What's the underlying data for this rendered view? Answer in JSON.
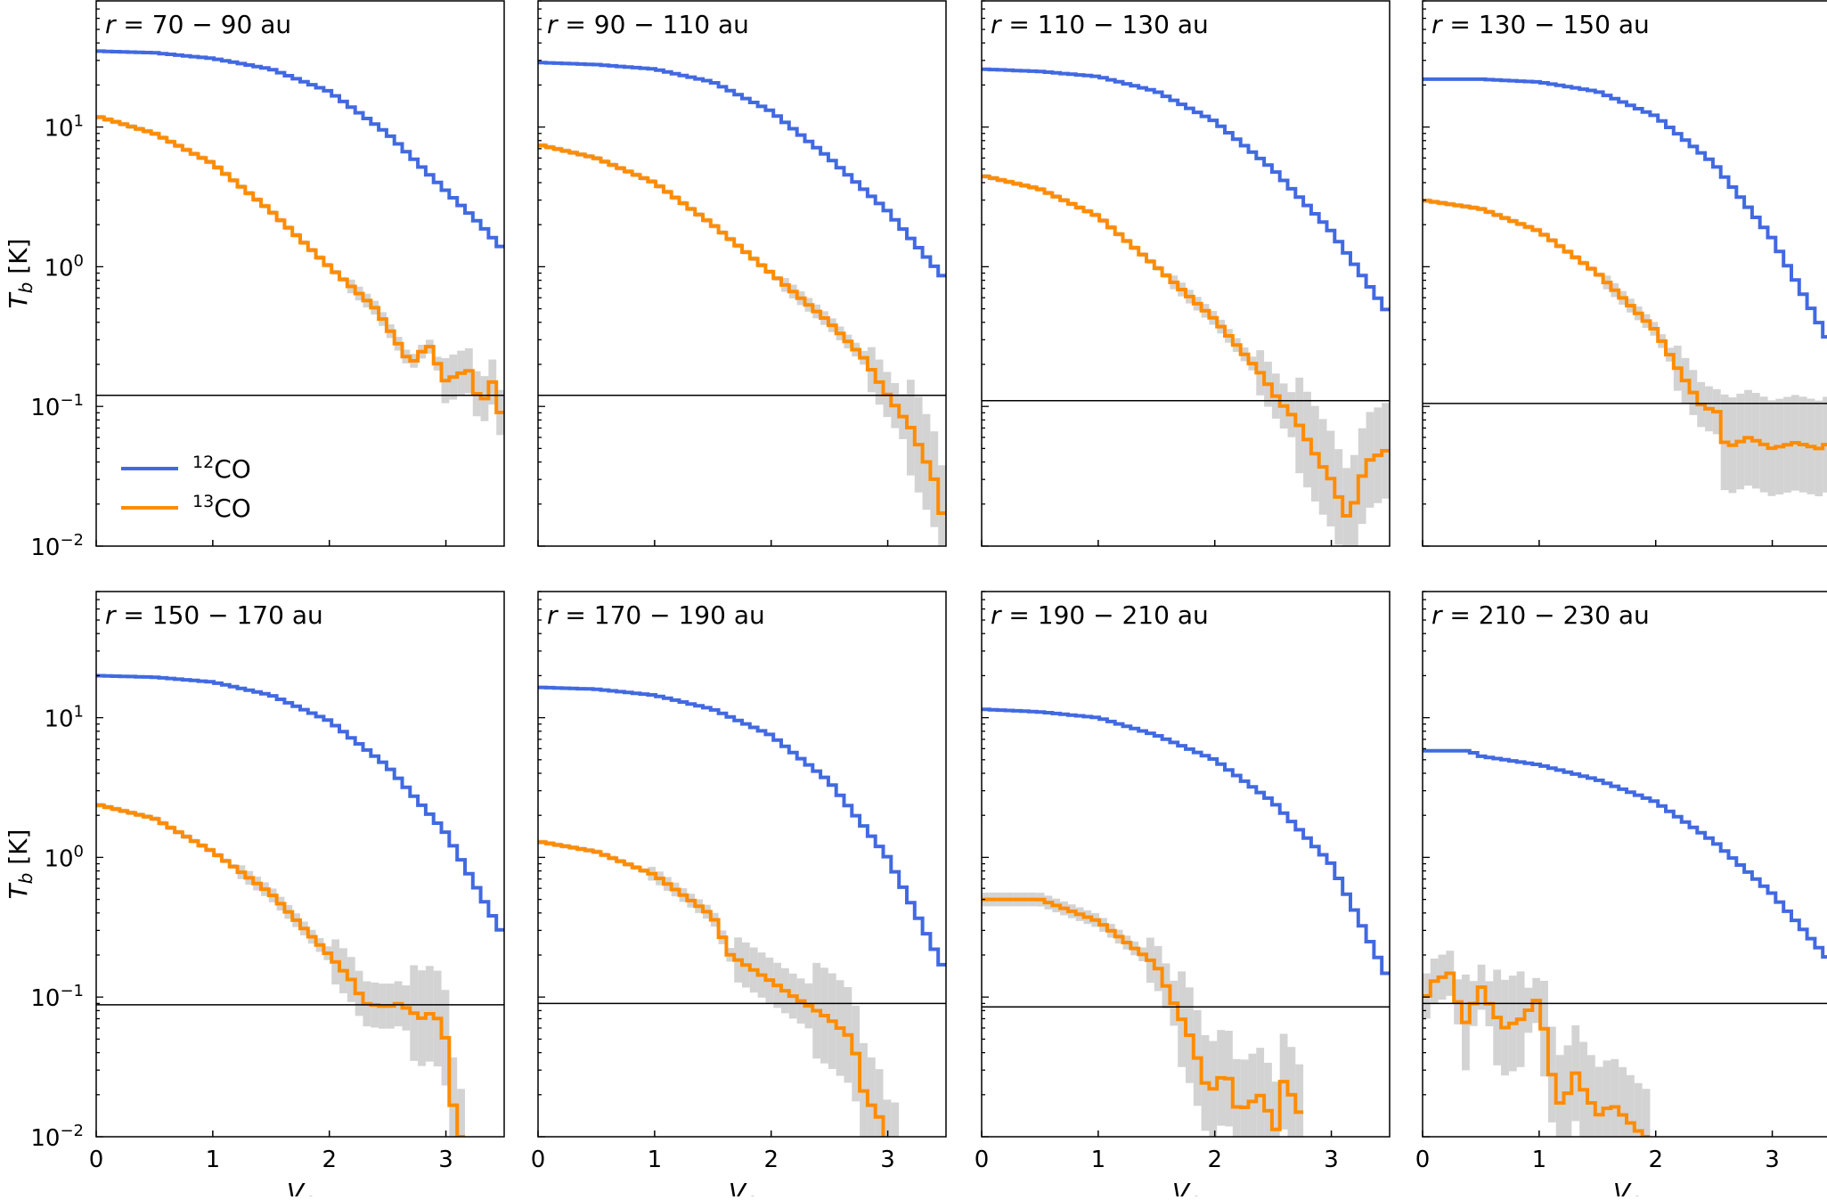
{
  "figure": {
    "ylabel": "T_b [K]",
    "xlabel": "V_c",
    "legend": [
      {
        "name": "12CO",
        "sup": "12",
        "base": "CO",
        "color": "#4169e1"
      },
      {
        "name": "13CO",
        "sup": "13",
        "base": "CO",
        "color": "#ff8c00"
      }
    ],
    "uncertainty_color": "#d3d3d3"
  },
  "chart_data": [
    {
      "type": "line",
      "scale": "log-y",
      "step": true,
      "label_prefix": "r",
      "label_range": "70 − 90",
      "label_unit": "au",
      "xlim": [
        0,
        3.5
      ],
      "ylim": [
        0.01,
        80
      ],
      "xticks": [
        0,
        1,
        2,
        3
      ],
      "yticks": [
        0.01,
        0.1,
        1,
        10
      ],
      "threshold": 0.12,
      "series": [
        {
          "name": "12CO",
          "points": [
            [
              0,
              35
            ],
            [
              0.5,
              34
            ],
            [
              1,
              31
            ],
            [
              1.5,
              26
            ],
            [
              2,
              18
            ],
            [
              2.5,
              9
            ],
            [
              3,
              3.5
            ],
            [
              3.3,
              2
            ],
            [
              3.5,
              1.3
            ]
          ]
        },
        {
          "name": "13CO",
          "points": [
            [
              0,
              12
            ],
            [
              0.5,
              9
            ],
            [
              1,
              5.5
            ],
            [
              1.5,
              2.5
            ],
            [
              2,
              1
            ],
            [
              2.4,
              0.5
            ],
            [
              2.55,
              0.32
            ],
            [
              2.7,
              0.2
            ],
            [
              2.85,
              0.28
            ],
            [
              3,
              0.15
            ],
            [
              3.1,
              0.17
            ],
            [
              3.2,
              0.18
            ],
            [
              3.3,
              0.1
            ],
            [
              3.4,
              0.15
            ],
            [
              3.5,
              0.07
            ]
          ]
        }
      ]
    },
    {
      "type": "line",
      "scale": "log-y",
      "step": true,
      "label_prefix": "r",
      "label_range": "90 − 110",
      "label_unit": "au",
      "xlim": [
        0,
        3.5
      ],
      "ylim": [
        0.01,
        80
      ],
      "xticks": [
        0,
        1,
        2,
        3
      ],
      "yticks": [
        0.01,
        0.1,
        1,
        10
      ],
      "threshold": 0.12,
      "series": [
        {
          "name": "12CO",
          "points": [
            [
              0,
              29
            ],
            [
              0.5,
              28
            ],
            [
              1,
              26
            ],
            [
              1.5,
              21
            ],
            [
              2,
              13
            ],
            [
              2.5,
              6
            ],
            [
              3,
              2.5
            ],
            [
              3.5,
              0.8
            ]
          ]
        },
        {
          "name": "13CO",
          "points": [
            [
              0,
              7.5
            ],
            [
              0.5,
              6
            ],
            [
              1,
              4
            ],
            [
              1.5,
              2
            ],
            [
              2,
              0.9
            ],
            [
              2.5,
              0.4
            ],
            [
              2.8,
              0.22
            ],
            [
              3,
              0.12
            ],
            [
              3.2,
              0.07
            ],
            [
              3.4,
              0.03
            ],
            [
              3.5,
              0.013
            ]
          ]
        }
      ]
    },
    {
      "type": "line",
      "scale": "log-y",
      "step": true,
      "label_prefix": "r",
      "label_range": "110 − 130",
      "label_unit": "au",
      "xlim": [
        0,
        3.5
      ],
      "ylim": [
        0.01,
        80
      ],
      "xticks": [
        0,
        1,
        2,
        3
      ],
      "yticks": [
        0.01,
        0.1,
        1,
        10
      ],
      "threshold": 0.11,
      "series": [
        {
          "name": "12CO",
          "points": [
            [
              0,
              26
            ],
            [
              0.5,
              25
            ],
            [
              1,
              23
            ],
            [
              1.5,
              18
            ],
            [
              2,
              11
            ],
            [
              2.5,
              5
            ],
            [
              3,
              1.8
            ],
            [
              3.5,
              0.45
            ]
          ]
        },
        {
          "name": "13CO",
          "points": [
            [
              0,
              4.5
            ],
            [
              0.5,
              3.6
            ],
            [
              1,
              2.3
            ],
            [
              1.5,
              1
            ],
            [
              2,
              0.42
            ],
            [
              2.4,
              0.17
            ],
            [
              2.55,
              0.11
            ],
            [
              2.7,
              0.08
            ],
            [
              2.9,
              0.04
            ],
            [
              3,
              0.03
            ],
            [
              3.15,
              0.015
            ],
            [
              3.3,
              0.04
            ],
            [
              3.5,
              0.05
            ]
          ]
        }
      ]
    },
    {
      "type": "line",
      "scale": "log-y",
      "step": true,
      "label_prefix": "r",
      "label_range": "130 − 150",
      "label_unit": "au",
      "xlim": [
        0,
        3.5
      ],
      "ylim": [
        0.01,
        80
      ],
      "xticks": [
        0,
        1,
        2,
        3
      ],
      "yticks": [
        0.01,
        0.1,
        1,
        10
      ],
      "threshold": 0.105,
      "series": [
        {
          "name": "12CO",
          "points": [
            [
              0,
              22
            ],
            [
              0.5,
              22
            ],
            [
              1,
              21
            ],
            [
              1.5,
              18
            ],
            [
              2,
              12
            ],
            [
              2.5,
              5.5
            ],
            [
              3,
              1.6
            ],
            [
              3.5,
              0.28
            ]
          ]
        },
        {
          "name": "13CO",
          "points": [
            [
              0,
              3
            ],
            [
              0.5,
              2.6
            ],
            [
              1,
              1.8
            ],
            [
              1.5,
              0.9
            ],
            [
              2,
              0.35
            ],
            [
              2.2,
              0.18
            ],
            [
              2.4,
              0.1
            ],
            [
              2.55,
              0.09
            ],
            [
              2.6,
              0.05
            ],
            [
              2.8,
              0.06
            ],
            [
              3,
              0.05
            ],
            [
              3.2,
              0.055
            ],
            [
              3.4,
              0.05
            ],
            [
              3.5,
              0.055
            ]
          ]
        }
      ]
    },
    {
      "type": "line",
      "scale": "log-y",
      "step": true,
      "label_prefix": "r",
      "label_range": "150 − 170",
      "label_unit": "au",
      "xlim": [
        0,
        3.5
      ],
      "ylim": [
        0.01,
        80
      ],
      "xticks": [
        0,
        1,
        2,
        3
      ],
      "yticks": [
        0.01,
        0.1,
        1,
        10
      ],
      "threshold": 0.088,
      "series": [
        {
          "name": "12CO",
          "points": [
            [
              0,
              20
            ],
            [
              0.5,
              19.5
            ],
            [
              1,
              18
            ],
            [
              1.5,
              14.5
            ],
            [
              2,
              9.5
            ],
            [
              2.5,
              4.5
            ],
            [
              3,
              1.5
            ],
            [
              3.5,
              0.27
            ]
          ]
        },
        {
          "name": "13CO",
          "points": [
            [
              0,
              2.4
            ],
            [
              0.5,
              1.9
            ],
            [
              1,
              1.1
            ],
            [
              1.5,
              0.55
            ],
            [
              2,
              0.2
            ],
            [
              2.2,
              0.13
            ],
            [
              2.3,
              0.09
            ],
            [
              2.5,
              0.085
            ],
            [
              2.6,
              0.09
            ],
            [
              2.8,
              0.07
            ],
            [
              2.9,
              0.08
            ],
            [
              3,
              0.05
            ],
            [
              3.05,
              0.02
            ],
            [
              3.1,
              0.01
            ]
          ]
        }
      ]
    },
    {
      "type": "line",
      "scale": "log-y",
      "step": true,
      "label_prefix": "r",
      "label_range": "170 − 190",
      "label_unit": "au",
      "xlim": [
        0,
        3.5
      ],
      "ylim": [
        0.01,
        80
      ],
      "xticks": [
        0,
        1,
        2,
        3
      ],
      "yticks": [
        0.01,
        0.1,
        1,
        10
      ],
      "threshold": 0.09,
      "series": [
        {
          "name": "12CO",
          "points": [
            [
              0,
              16.5
            ],
            [
              0.5,
              16
            ],
            [
              1,
              14.5
            ],
            [
              1.5,
              11.5
            ],
            [
              2,
              7.5
            ],
            [
              2.5,
              3.5
            ],
            [
              3,
              1
            ],
            [
              3.5,
              0.15
            ]
          ]
        },
        {
          "name": "13CO",
          "points": [
            [
              0,
              1.3
            ],
            [
              0.5,
              1.1
            ],
            [
              1,
              0.75
            ],
            [
              1.5,
              0.38
            ],
            [
              1.65,
              0.2
            ],
            [
              2,
              0.13
            ],
            [
              2.2,
              0.1
            ],
            [
              2.5,
              0.07
            ],
            [
              2.7,
              0.05
            ],
            [
              2.8,
              0.02
            ],
            [
              2.95,
              0.013
            ],
            [
              3,
              0.008
            ]
          ]
        }
      ]
    },
    {
      "type": "line",
      "scale": "log-y",
      "step": true,
      "label_prefix": "r",
      "label_range": "190 − 210",
      "label_unit": "au",
      "xlim": [
        0,
        3.5
      ],
      "ylim": [
        0.01,
        80
      ],
      "xticks": [
        0,
        1,
        2,
        3
      ],
      "yticks": [
        0.01,
        0.1,
        1,
        10
      ],
      "threshold": 0.085,
      "series": [
        {
          "name": "12CO",
          "points": [
            [
              0,
              11.5
            ],
            [
              0.5,
              11
            ],
            [
              1,
              10
            ],
            [
              1.5,
              7.5
            ],
            [
              2,
              5
            ],
            [
              2.5,
              2.5
            ],
            [
              3,
              0.9
            ],
            [
              3.5,
              0.13
            ]
          ]
        },
        {
          "name": "13CO",
          "points": [
            [
              0,
              0.5
            ],
            [
              0.5,
              0.5
            ],
            [
              1,
              0.35
            ],
            [
              1.5,
              0.17
            ],
            [
              1.65,
              0.09
            ],
            [
              1.8,
              0.05
            ],
            [
              1.95,
              0.02
            ],
            [
              2.1,
              0.03
            ],
            [
              2.2,
              0.015
            ],
            [
              2.4,
              0.02
            ],
            [
              2.55,
              0.01
            ],
            [
              2.6,
              0.03
            ],
            [
              2.7,
              0.015
            ]
          ]
        }
      ]
    },
    {
      "type": "line",
      "scale": "log-y",
      "step": true,
      "label_prefix": "r",
      "label_range": "210 − 230",
      "label_unit": "au",
      "xlim": [
        0,
        3.5
      ],
      "ylim": [
        0.01,
        80
      ],
      "xticks": [
        0,
        1,
        2,
        3
      ],
      "yticks": [
        0.01,
        0.1,
        1,
        10
      ],
      "threshold": 0.09,
      "series": [
        {
          "name": "12CO",
          "points": [
            [
              0,
              5.8
            ],
            [
              0.4,
              5.8
            ],
            [
              0.5,
              5.3
            ],
            [
              1,
              4.6
            ],
            [
              1.5,
              3.6
            ],
            [
              2,
              2.5
            ],
            [
              2.5,
              1.3
            ],
            [
              3,
              0.55
            ],
            [
              3.5,
              0.18
            ]
          ]
        },
        {
          "name": "13CO",
          "points": [
            [
              0,
              0.09
            ],
            [
              0.1,
              0.13
            ],
            [
              0.25,
              0.15
            ],
            [
              0.35,
              0.06
            ],
            [
              0.5,
              0.12
            ],
            [
              0.6,
              0.08
            ],
            [
              0.7,
              0.06
            ],
            [
              0.85,
              0.07
            ],
            [
              1,
              0.1
            ],
            [
              1.1,
              0.03
            ],
            [
              1.2,
              0.015
            ],
            [
              1.3,
              0.03
            ],
            [
              1.4,
              0.02
            ],
            [
              1.55,
              0.013
            ],
            [
              1.6,
              0.018
            ],
            [
              1.9,
              0.01
            ]
          ]
        }
      ]
    }
  ]
}
